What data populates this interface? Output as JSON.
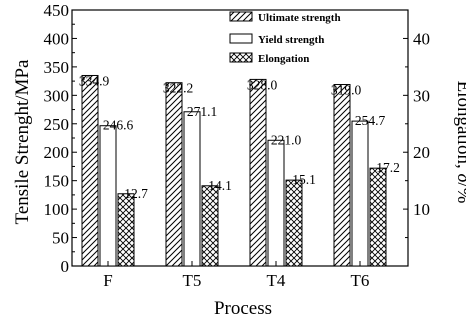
{
  "chart_data": {
    "type": "bar",
    "categories": [
      "F",
      "T5",
      "T4",
      "T6"
    ],
    "series": [
      {
        "name": "Ultimate strength",
        "values": [
          334.9,
          322.2,
          328.0,
          319.0
        ],
        "pattern": "diagonal-hatch",
        "axis": "left"
      },
      {
        "name": "Yield strength",
        "values": [
          246.6,
          271.1,
          221.0,
          254.7
        ],
        "pattern": "solid-white",
        "axis": "left"
      },
      {
        "name": "Elongation",
        "values": [
          12.7,
          14.1,
          15.1,
          17.2
        ],
        "pattern": "cross-hatch",
        "axis": "right"
      }
    ],
    "data_labels": {
      "Ultimate strength": [
        "334.9",
        "322.2",
        "328.0",
        "319.0"
      ],
      "Yield strength": [
        "246.6",
        "271.1",
        "221.0",
        "254.7"
      ],
      "Elongation": [
        "12.7",
        "14.1",
        "15.1",
        "17.2"
      ]
    },
    "xlabel": "Process",
    "ylabel": "Tensile Strenght/MPa",
    "y2label_prefix": "Elongation, ",
    "y2label_symbol": "δ",
    "y2label_suffix": "/%",
    "ylim": [
      0,
      450
    ],
    "y2lim": [
      0,
      45
    ],
    "yticks": [
      0,
      50,
      100,
      150,
      200,
      250,
      300,
      350,
      400,
      450
    ],
    "y2ticks": [
      10,
      20,
      30,
      40
    ],
    "legend_position": "top-center",
    "grid": false,
    "colors": {
      "stroke": "#000000",
      "fill": "#ffffff"
    }
  }
}
